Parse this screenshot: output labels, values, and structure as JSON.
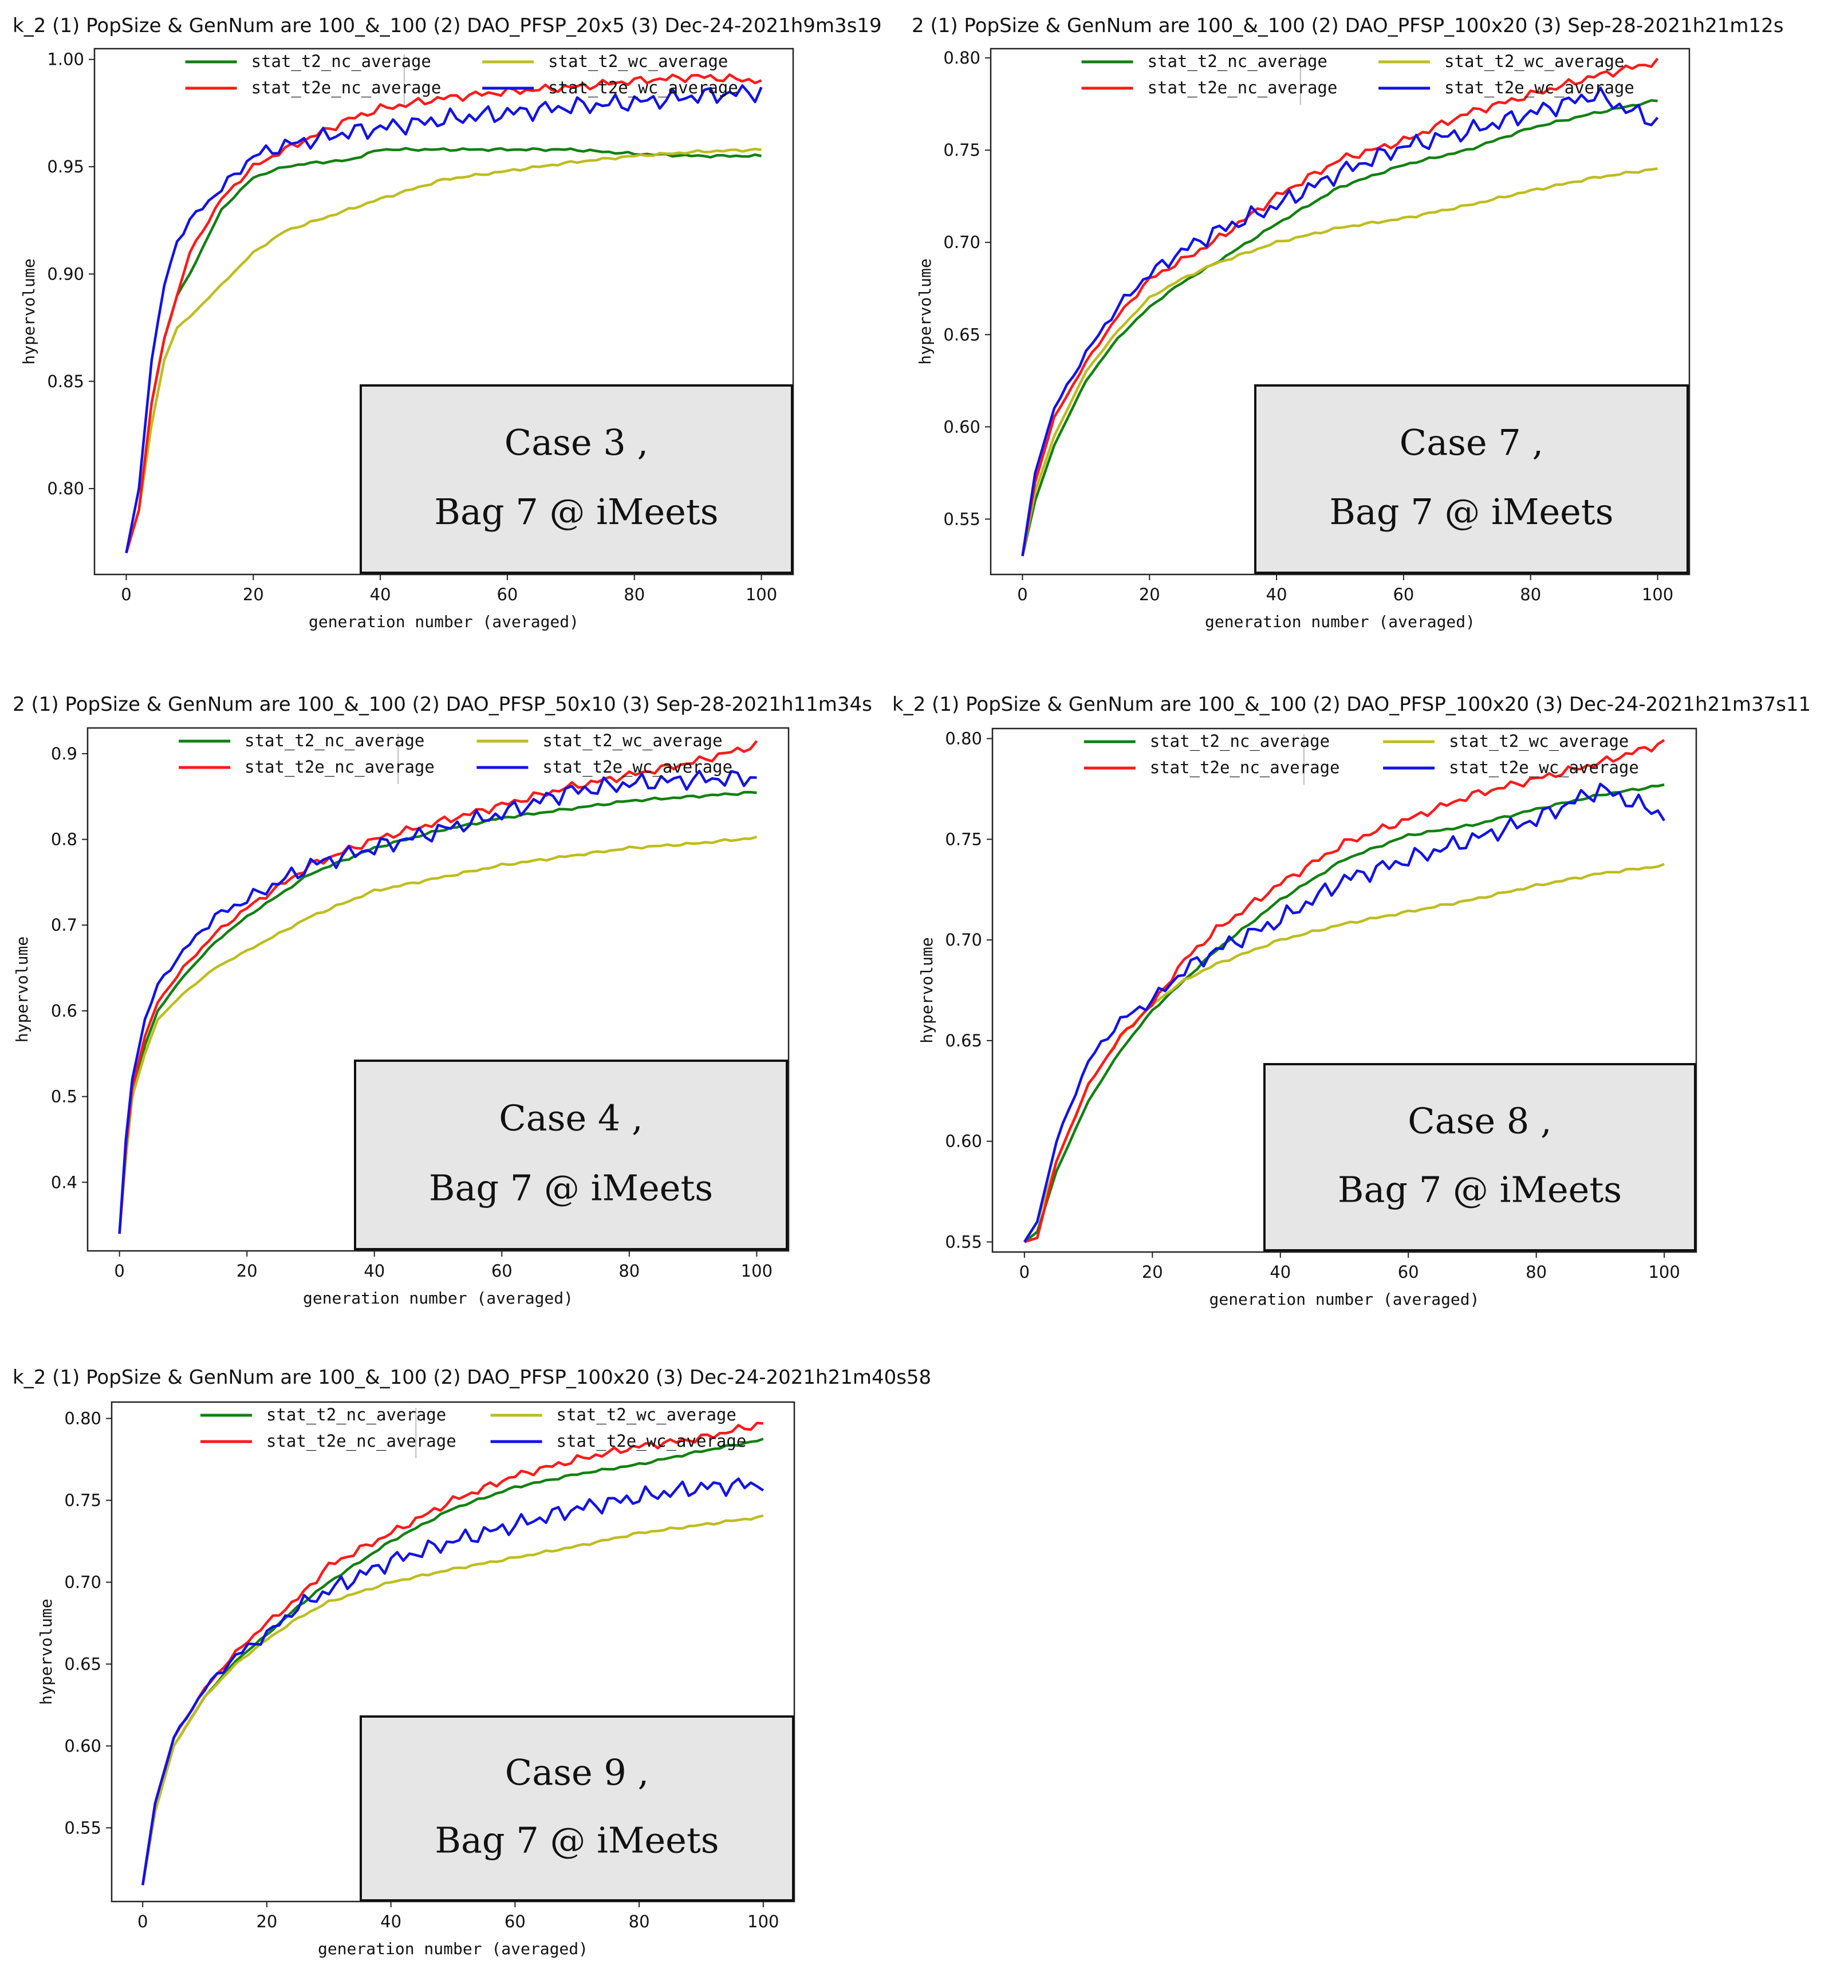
{
  "colors": {
    "stat_t2_nc_average": "#108010",
    "stat_t2e_nc_average": "#ff1a1a",
    "stat_t2_wc_average": "#bdbd1f",
    "stat_t2e_wc_average": "#1212e6",
    "axes": "#222222",
    "annotation_fill": "#e6e6e6",
    "annotation_border": "#111111"
  },
  "chart_data": [
    {
      "type": "line",
      "title": "k_2 (1) PopSize & GenNum are 100_&_100 (2) DAO_PFSP_20x5 (3) Dec-24-2021h9m3s19",
      "xlabel": "generation number (averaged)",
      "ylabel": "hypervolume",
      "xlim": [
        -5,
        105
      ],
      "ylim": [
        0.76,
        1.005
      ],
      "xticks": [
        0,
        20,
        40,
        60,
        80,
        100
      ],
      "yticks": [
        0.8,
        0.85,
        0.9,
        0.95,
        1.0
      ],
      "ytick_labels": [
        "0.80",
        "0.85",
        "0.90",
        "0.95",
        "1.00"
      ],
      "legend": [
        "stat_t2_nc_average",
        "stat_t2_wc_average",
        "stat_t2e_nc_average",
        "stat_t2e_wc_average"
      ],
      "legend_location": "top-center",
      "annotation": {
        "line1": "Case 3 ,",
        "line2": "Bag 7 @ iMeets"
      },
      "series": [
        {
          "name": "stat_t2_nc_average",
          "x": [
            0,
            2,
            4,
            6,
            8,
            10,
            15,
            20,
            25,
            30,
            35,
            40,
            50,
            60,
            70,
            80,
            90,
            100
          ],
          "values": [
            0.77,
            0.79,
            0.84,
            0.87,
            0.89,
            0.9,
            0.93,
            0.945,
            0.95,
            0.952,
            0.953,
            0.958,
            0.958,
            0.958,
            0.958,
            0.956,
            0.955,
            0.955
          ]
        },
        {
          "name": "stat_t2_wc_average",
          "x": [
            0,
            2,
            4,
            6,
            8,
            10,
            15,
            20,
            25,
            30,
            35,
            40,
            50,
            60,
            70,
            80,
            90,
            100
          ],
          "values": [
            0.77,
            0.79,
            0.83,
            0.86,
            0.875,
            0.88,
            0.895,
            0.91,
            0.92,
            0.925,
            0.93,
            0.935,
            0.944,
            0.948,
            0.952,
            0.955,
            0.957,
            0.958
          ]
        },
        {
          "name": "stat_t2e_nc_average",
          "x": [
            0,
            2,
            4,
            6,
            8,
            10,
            15,
            20,
            25,
            30,
            35,
            40,
            50,
            60,
            70,
            80,
            90,
            100
          ],
          "values": [
            0.77,
            0.79,
            0.84,
            0.87,
            0.89,
            0.91,
            0.935,
            0.95,
            0.958,
            0.965,
            0.972,
            0.977,
            0.982,
            0.985,
            0.987,
            0.99,
            0.992,
            0.99
          ]
        },
        {
          "name": "stat_t2e_wc_average",
          "x": [
            0,
            2,
            4,
            6,
            8,
            10,
            15,
            20,
            25,
            30,
            35,
            40,
            50,
            60,
            70,
            80,
            90,
            100
          ],
          "values": [
            0.77,
            0.8,
            0.86,
            0.895,
            0.915,
            0.925,
            0.94,
            0.955,
            0.96,
            0.963,
            0.966,
            0.968,
            0.972,
            0.975,
            0.978,
            0.98,
            0.983,
            0.985
          ]
        }
      ]
    },
    {
      "type": "line",
      "title": "2 (1) PopSize & GenNum are 100_&_100 (2) DAO_PFSP_100x20 (3) Sep-28-2021h21m12s",
      "xlabel": "generation number (averaged)",
      "ylabel": "hypervolume",
      "xlim": [
        -5,
        105
      ],
      "ylim": [
        0.52,
        0.805
      ],
      "xticks": [
        0,
        20,
        40,
        60,
        80,
        100
      ],
      "yticks": [
        0.55,
        0.6,
        0.65,
        0.7,
        0.75,
        0.8
      ],
      "ytick_labels": [
        "0.55",
        "0.60",
        "0.65",
        "0.70",
        "0.75",
        "0.80"
      ],
      "legend": [
        "stat_t2_nc_average",
        "stat_t2_wc_average",
        "stat_t2e_nc_average",
        "stat_t2e_wc_average"
      ],
      "legend_location": "top-center",
      "annotation": {
        "line1": "Case 7 ,",
        "line2": "Bag 7 @ iMeets"
      },
      "series": [
        {
          "name": "stat_t2_nc_average",
          "x": [
            0,
            2,
            5,
            10,
            15,
            20,
            25,
            30,
            40,
            50,
            60,
            70,
            80,
            90,
            100
          ],
          "values": [
            0.53,
            0.56,
            0.59,
            0.625,
            0.648,
            0.665,
            0.678,
            0.688,
            0.71,
            0.73,
            0.742,
            0.75,
            0.762,
            0.77,
            0.777
          ]
        },
        {
          "name": "stat_t2_wc_average",
          "x": [
            0,
            2,
            5,
            10,
            15,
            20,
            25,
            30,
            40,
            50,
            60,
            70,
            80,
            90,
            100
          ],
          "values": [
            0.53,
            0.565,
            0.595,
            0.63,
            0.652,
            0.67,
            0.68,
            0.688,
            0.7,
            0.708,
            0.713,
            0.72,
            0.728,
            0.735,
            0.74
          ]
        },
        {
          "name": "stat_t2e_nc_average",
          "x": [
            0,
            2,
            5,
            10,
            15,
            20,
            25,
            30,
            40,
            50,
            60,
            70,
            80,
            90,
            100
          ],
          "values": [
            0.53,
            0.57,
            0.605,
            0.635,
            0.66,
            0.68,
            0.69,
            0.7,
            0.725,
            0.745,
            0.755,
            0.77,
            0.78,
            0.79,
            0.798
          ]
        },
        {
          "name": "stat_t2e_wc_average",
          "x": [
            0,
            2,
            5,
            10,
            15,
            20,
            25,
            30,
            40,
            50,
            60,
            70,
            80,
            90,
            100
          ],
          "values": [
            0.53,
            0.575,
            0.61,
            0.64,
            0.665,
            0.683,
            0.695,
            0.705,
            0.72,
            0.738,
            0.752,
            0.76,
            0.77,
            0.78,
            0.765
          ]
        }
      ]
    },
    {
      "type": "line",
      "title": "2 (1) PopSize & GenNum are 100_&_100 (2) DAO_PFSP_50x10 (3) Sep-28-2021h11m34s",
      "xlabel": "generation number (averaged)",
      "ylabel": "hypervolume",
      "xlim": [
        -5,
        105
      ],
      "ylim": [
        0.32,
        0.93
      ],
      "xticks": [
        0,
        20,
        40,
        60,
        80,
        100
      ],
      "yticks": [
        0.4,
        0.5,
        0.6,
        0.7,
        0.8,
        0.9
      ],
      "ytick_labels": [
        "0.4",
        "0.5",
        "0.6",
        "0.7",
        "0.8",
        "0.9"
      ],
      "legend": [
        "stat_t2_nc_average",
        "stat_t2_wc_average",
        "stat_t2e_nc_average",
        "stat_t2e_wc_average"
      ],
      "legend_location": "top-center",
      "annotation": {
        "line1": "Case 4 ,",
        "line2": "Bag 7 @ iMeets"
      },
      "series": [
        {
          "name": "stat_t2_nc_average",
          "x": [
            0,
            1,
            2,
            4,
            6,
            10,
            15,
            20,
            30,
            40,
            50,
            60,
            70,
            80,
            90,
            100
          ],
          "values": [
            0.34,
            0.43,
            0.5,
            0.56,
            0.6,
            0.64,
            0.68,
            0.71,
            0.76,
            0.79,
            0.81,
            0.825,
            0.835,
            0.845,
            0.85,
            0.855
          ]
        },
        {
          "name": "stat_t2_wc_average",
          "x": [
            0,
            1,
            2,
            4,
            6,
            10,
            15,
            20,
            30,
            40,
            50,
            60,
            70,
            80,
            90,
            100
          ],
          "values": [
            0.34,
            0.43,
            0.5,
            0.55,
            0.59,
            0.62,
            0.65,
            0.67,
            0.71,
            0.74,
            0.755,
            0.77,
            0.78,
            0.79,
            0.795,
            0.802
          ]
        },
        {
          "name": "stat_t2e_nc_average",
          "x": [
            0,
            1,
            2,
            4,
            6,
            10,
            15,
            20,
            30,
            40,
            50,
            60,
            70,
            80,
            90,
            100
          ],
          "values": [
            0.34,
            0.44,
            0.51,
            0.57,
            0.61,
            0.65,
            0.69,
            0.72,
            0.77,
            0.8,
            0.82,
            0.84,
            0.86,
            0.875,
            0.89,
            0.91
          ]
        },
        {
          "name": "stat_t2e_wc_average",
          "x": [
            0,
            1,
            2,
            4,
            6,
            10,
            15,
            20,
            30,
            40,
            50,
            60,
            70,
            80,
            90,
            100
          ],
          "values": [
            0.34,
            0.45,
            0.52,
            0.59,
            0.63,
            0.67,
            0.71,
            0.73,
            0.77,
            0.79,
            0.81,
            0.83,
            0.855,
            0.865,
            0.87,
            0.872
          ]
        }
      ]
    },
    {
      "type": "line",
      "title": "k_2 (1) PopSize & GenNum are 100_&_100 (2) DAO_PFSP_100x20 (3) Dec-24-2021h21m37s11",
      "xlabel": "generation number (averaged)",
      "ylabel": "hypervolume",
      "xlim": [
        -5,
        105
      ],
      "ylim": [
        0.545,
        0.805
      ],
      "xticks": [
        0,
        20,
        40,
        60,
        80,
        100
      ],
      "yticks": [
        0.55,
        0.6,
        0.65,
        0.7,
        0.75,
        0.8
      ],
      "ytick_labels": [
        "0.55",
        "0.60",
        "0.65",
        "0.70",
        "0.75",
        "0.80"
      ],
      "legend": [
        "stat_t2_nc_average",
        "stat_t2_wc_average",
        "stat_t2e_nc_average",
        "stat_t2e_wc_average"
      ],
      "legend_location": "top-center",
      "annotation": {
        "line1": "Case 8 ,",
        "line2": "Bag 7 @ iMeets"
      },
      "series": [
        {
          "name": "stat_t2_nc_average",
          "x": [
            0,
            2,
            5,
            10,
            15,
            20,
            25,
            30,
            40,
            50,
            60,
            70,
            80,
            90,
            100
          ],
          "values": [
            0.55,
            0.555,
            0.585,
            0.62,
            0.645,
            0.665,
            0.68,
            0.695,
            0.72,
            0.74,
            0.752,
            0.757,
            0.765,
            0.772,
            0.777
          ]
        },
        {
          "name": "stat_t2_wc_average",
          "x": [
            0,
            2,
            5,
            10,
            15,
            20,
            25,
            30,
            40,
            50,
            60,
            70,
            80,
            90,
            100
          ],
          "values": [
            0.55,
            0.56,
            0.59,
            0.628,
            0.652,
            0.668,
            0.68,
            0.688,
            0.7,
            0.708,
            0.714,
            0.72,
            0.727,
            0.733,
            0.737
          ]
        },
        {
          "name": "stat_t2e_nc_average",
          "x": [
            0,
            2,
            5,
            10,
            15,
            20,
            25,
            30,
            40,
            50,
            60,
            70,
            80,
            90,
            100
          ],
          "values": [
            0.55,
            0.552,
            0.59,
            0.628,
            0.652,
            0.668,
            0.69,
            0.705,
            0.728,
            0.748,
            0.76,
            0.772,
            0.78,
            0.788,
            0.798
          ]
        },
        {
          "name": "stat_t2e_wc_average",
          "x": [
            0,
            2,
            5,
            10,
            15,
            20,
            25,
            30,
            40,
            50,
            60,
            70,
            80,
            90,
            100
          ],
          "values": [
            0.55,
            0.56,
            0.6,
            0.64,
            0.66,
            0.67,
            0.685,
            0.695,
            0.71,
            0.73,
            0.74,
            0.75,
            0.76,
            0.775,
            0.762
          ]
        }
      ]
    },
    {
      "type": "line",
      "title": "k_2 (1) PopSize & GenNum are 100_&_100 (2) DAO_PFSP_100x20 (3) Dec-24-2021h21m40s58",
      "xlabel": "generation number (averaged)",
      "ylabel": "hypervolume",
      "xlim": [
        -5,
        105
      ],
      "ylim": [
        0.505,
        0.81
      ],
      "xticks": [
        0,
        20,
        40,
        60,
        80,
        100
      ],
      "yticks": [
        0.55,
        0.6,
        0.65,
        0.7,
        0.75,
        0.8
      ],
      "ytick_labels": [
        "0.55",
        "0.60",
        "0.65",
        "0.70",
        "0.75",
        "0.80"
      ],
      "legend": [
        "stat_t2_nc_average",
        "stat_t2_wc_average",
        "stat_t2e_nc_average",
        "stat_t2e_wc_average"
      ],
      "legend_location": "top-center",
      "annotation": {
        "line1": "Case 9 ,",
        "line2": "Bag 7 @ iMeets"
      },
      "series": [
        {
          "name": "stat_t2_nc_average",
          "x": [
            0,
            2,
            5,
            10,
            15,
            20,
            25,
            30,
            40,
            50,
            60,
            70,
            80,
            90,
            100
          ],
          "values": [
            0.515,
            0.56,
            0.6,
            0.63,
            0.652,
            0.668,
            0.685,
            0.7,
            0.725,
            0.745,
            0.758,
            0.766,
            0.772,
            0.78,
            0.787
          ]
        },
        {
          "name": "stat_t2_wc_average",
          "x": [
            0,
            2,
            5,
            10,
            15,
            20,
            25,
            30,
            40,
            50,
            60,
            70,
            80,
            90,
            100
          ],
          "values": [
            0.515,
            0.56,
            0.6,
            0.63,
            0.65,
            0.665,
            0.678,
            0.688,
            0.7,
            0.708,
            0.715,
            0.722,
            0.73,
            0.735,
            0.74
          ]
        },
        {
          "name": "stat_t2e_nc_average",
          "x": [
            0,
            2,
            5,
            10,
            15,
            20,
            25,
            30,
            40,
            50,
            60,
            70,
            80,
            90,
            100
          ],
          "values": [
            0.515,
            0.565,
            0.605,
            0.635,
            0.657,
            0.675,
            0.69,
            0.71,
            0.73,
            0.75,
            0.765,
            0.775,
            0.783,
            0.788,
            0.797
          ]
        },
        {
          "name": "stat_t2e_wc_average",
          "x": [
            0,
            2,
            5,
            10,
            15,
            20,
            25,
            30,
            40,
            50,
            60,
            70,
            80,
            90,
            100
          ],
          "values": [
            0.515,
            0.565,
            0.605,
            0.635,
            0.655,
            0.668,
            0.685,
            0.695,
            0.713,
            0.725,
            0.735,
            0.745,
            0.752,
            0.758,
            0.76
          ]
        }
      ]
    }
  ]
}
